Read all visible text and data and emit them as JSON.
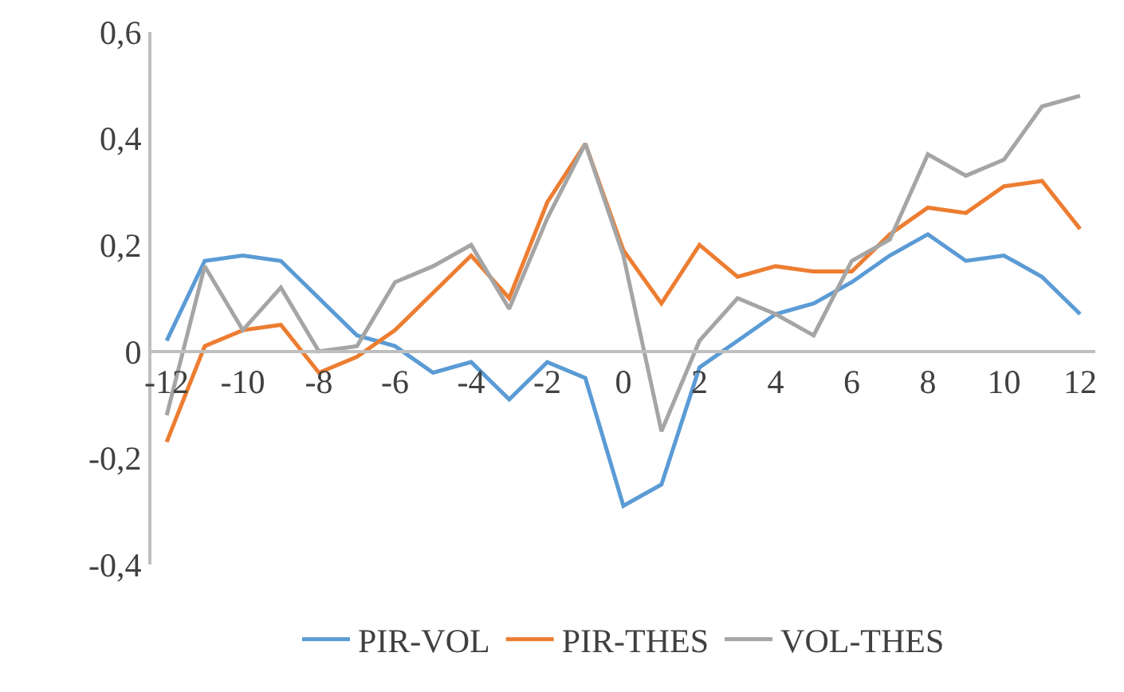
{
  "chart_data": {
    "type": "line",
    "x": [
      -12,
      -11,
      -10,
      -9,
      -8,
      -7,
      -6,
      -5,
      -4,
      -3,
      -2,
      -1,
      0,
      1,
      2,
      3,
      4,
      5,
      6,
      7,
      8,
      9,
      10,
      11,
      12
    ],
    "series": [
      {
        "name": "PIR-VOL",
        "color": "#5b9bd5",
        "values": [
          0.02,
          0.17,
          0.18,
          0.17,
          0.1,
          0.03,
          0.01,
          -0.04,
          -0.02,
          -0.09,
          -0.02,
          -0.05,
          -0.29,
          -0.25,
          -0.03,
          0.02,
          0.07,
          0.09,
          0.13,
          0.18,
          0.22,
          0.17,
          0.18,
          0.14,
          0.07
        ]
      },
      {
        "name": "PIR-THES",
        "color": "#ed7d31",
        "values": [
          -0.17,
          0.01,
          0.04,
          0.05,
          -0.04,
          -0.01,
          0.04,
          0.11,
          0.18,
          0.1,
          0.28,
          0.39,
          0.19,
          0.09,
          0.2,
          0.14,
          0.16,
          0.15,
          0.15,
          0.22,
          0.27,
          0.26,
          0.31,
          0.32,
          0.23
        ]
      },
      {
        "name": "VOL-THES",
        "color": "#a5a5a5",
        "values": [
          -0.12,
          0.16,
          0.04,
          0.12,
          0.0,
          0.01,
          0.13,
          0.16,
          0.2,
          0.08,
          0.25,
          0.39,
          0.18,
          -0.15,
          0.02,
          0.1,
          0.07,
          0.03,
          0.17,
          0.21,
          0.37,
          0.33,
          0.36,
          0.46,
          0.48
        ]
      }
    ],
    "xlim": [
      -12.4,
      12.4
    ],
    "xticks": [
      -12,
      -10,
      -8,
      -6,
      -4,
      -2,
      0,
      2,
      4,
      6,
      8,
      10,
      12
    ],
    "ylim": [
      -0.4,
      0.6
    ],
    "yticks": [
      {
        "value": -0.4,
        "label": "-0,4"
      },
      {
        "value": -0.2,
        "label": "-0,2"
      },
      {
        "value": 0,
        "label": "0"
      },
      {
        "value": 0.2,
        "label": "0,2"
      },
      {
        "value": 0.4,
        "label": "0,4"
      },
      {
        "value": 0.6,
        "label": "0,6"
      }
    ],
    "grid": false,
    "legend": "bottom",
    "marker": "none",
    "line_style": "solid"
  }
}
